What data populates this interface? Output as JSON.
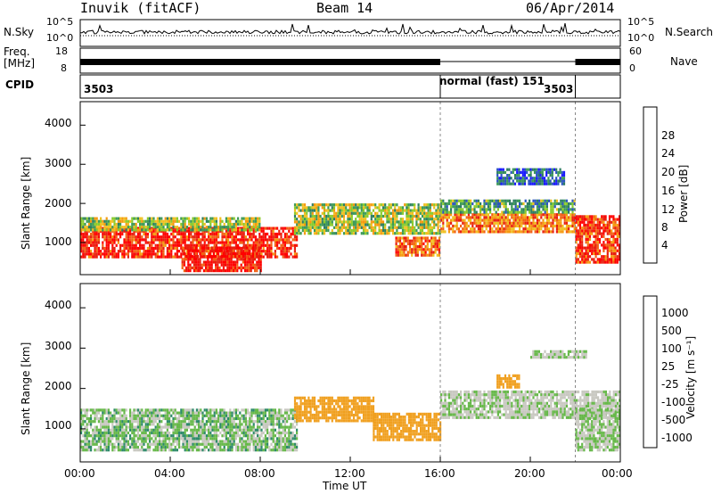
{
  "header": {
    "station": "Inuvik (fitACF)",
    "beam": "Beam 14",
    "date": "06/Apr/2014"
  },
  "nsky_panel": {
    "label": "N.Sky",
    "left_ticks": [
      "10^5",
      "10^0"
    ],
    "right_ticks": [
      "10^5",
      "10^0"
    ],
    "right_label": "N.Search"
  },
  "freq_panel": {
    "label_line1": "Freq.",
    "label_line2": "[MHz]",
    "left_ticks": [
      "18",
      "8"
    ],
    "right_ticks": [
      "60",
      "0"
    ],
    "right_label": "Nave"
  },
  "cpid_panel": {
    "label": "CPID",
    "segments": [
      {
        "text": "3503",
        "start_hour": 0
      },
      {
        "text": "normal (fast) 151",
        "start_hour": 16
      },
      {
        "text": "3503",
        "start_hour": 22
      }
    ]
  },
  "x_axis": {
    "label": "Time UT",
    "ticks": [
      "00:00",
      "04:00",
      "08:00",
      "12:00",
      "16:00",
      "20:00",
      "00:00"
    ]
  },
  "power_panel": {
    "ylabel": "Slant Range [km]",
    "yticks": [
      "1000",
      "2000",
      "3000",
      "4000"
    ],
    "colorbar_label": "Power [dB]",
    "colorbar_ticks": [
      "4",
      "8",
      "12",
      "16",
      "20",
      "24",
      "28"
    ]
  },
  "velocity_panel": {
    "ylabel": "Slant Range [km]",
    "yticks": [
      "1000",
      "2000",
      "3000",
      "4000"
    ],
    "colorbar_label": "Velocity [m s⁻¹]",
    "colorbar_ticks": [
      "1000",
      "500",
      "100",
      "25",
      "-25",
      "-100",
      "-500",
      "-1000"
    ]
  },
  "colors": {
    "power_scale": [
      "#1a1aff",
      "#2b55c0",
      "#2e7d62",
      "#3d9a57",
      "#8acb2c",
      "#f0c020",
      "#f59a10",
      "#f26015",
      "#e82010",
      "#ff0000"
    ],
    "velocity_scale": [
      "#2233cc",
      "#2a6fb0",
      "#2e8a6a",
      "#67b84a",
      "#c8c8c0",
      "#c8c8c0",
      "#f0a020",
      "#f07a10",
      "#f04010",
      "#ff0000"
    ]
  },
  "chart_data": [
    {
      "type": "heatmap",
      "title": "Power",
      "xlabel": "Time UT",
      "ylabel": "Slant Range [km]",
      "x_range_hours": [
        0,
        24
      ],
      "ylim": [
        180,
        4600
      ],
      "colorbar_range_db": [
        0,
        30
      ],
      "regions": [
        {
          "t": [
            0.0,
            9.6
          ],
          "range": [
            600,
            1400
          ],
          "value_db": 26
        },
        {
          "t": [
            0.0,
            8.0
          ],
          "range": [
            1300,
            1650
          ],
          "value_db": 14
        },
        {
          "t": [
            4.5,
            8.0
          ],
          "range": [
            300,
            900
          ],
          "value_db": 27
        },
        {
          "t": [
            9.5,
            16.0
          ],
          "range": [
            1250,
            2000
          ],
          "value_db": 14
        },
        {
          "t": [
            14.0,
            16.0
          ],
          "range": [
            700,
            1150
          ],
          "value_db": 22
        },
        {
          "t": [
            16.0,
            22.0
          ],
          "range": [
            1300,
            1750
          ],
          "value_db": 21
        },
        {
          "t": [
            16.0,
            22.0
          ],
          "range": [
            1800,
            2100
          ],
          "value_db": 10
        },
        {
          "t": [
            18.5,
            21.5
          ],
          "range": [
            2500,
            2900
          ],
          "value_db": 6
        },
        {
          "t": [
            22.0,
            24.0
          ],
          "range": [
            500,
            1700
          ],
          "value_db": 25
        }
      ]
    },
    {
      "type": "heatmap",
      "title": "Velocity",
      "xlabel": "Time UT",
      "ylabel": "Slant Range [km]",
      "x_range_hours": [
        0,
        24
      ],
      "ylim": [
        180,
        4600
      ],
      "colorbar_ticks": [
        1000,
        500,
        100,
        25,
        -25,
        -100,
        -500,
        -1000
      ],
      "regions": [
        {
          "t": [
            0.0,
            9.6
          ],
          "range": [
            500,
            1500
          ],
          "value_ms": 50
        },
        {
          "t": [
            9.5,
            13.0
          ],
          "range": [
            1200,
            1800
          ],
          "value_ms": -300
        },
        {
          "t": [
            13.0,
            16.0
          ],
          "range": [
            700,
            1400
          ],
          "value_ms": -300
        },
        {
          "t": [
            16.0,
            24.0
          ],
          "range": [
            1300,
            1950
          ],
          "value_ms": 0
        },
        {
          "t": [
            18.5,
            19.5
          ],
          "range": [
            2000,
            2350
          ],
          "value_ms": -300
        },
        {
          "t": [
            20.0,
            22.5
          ],
          "range": [
            2750,
            2950
          ],
          "value_ms": 0
        },
        {
          "t": [
            22.0,
            24.0
          ],
          "range": [
            500,
            1500
          ],
          "value_ms": 20
        }
      ]
    }
  ]
}
